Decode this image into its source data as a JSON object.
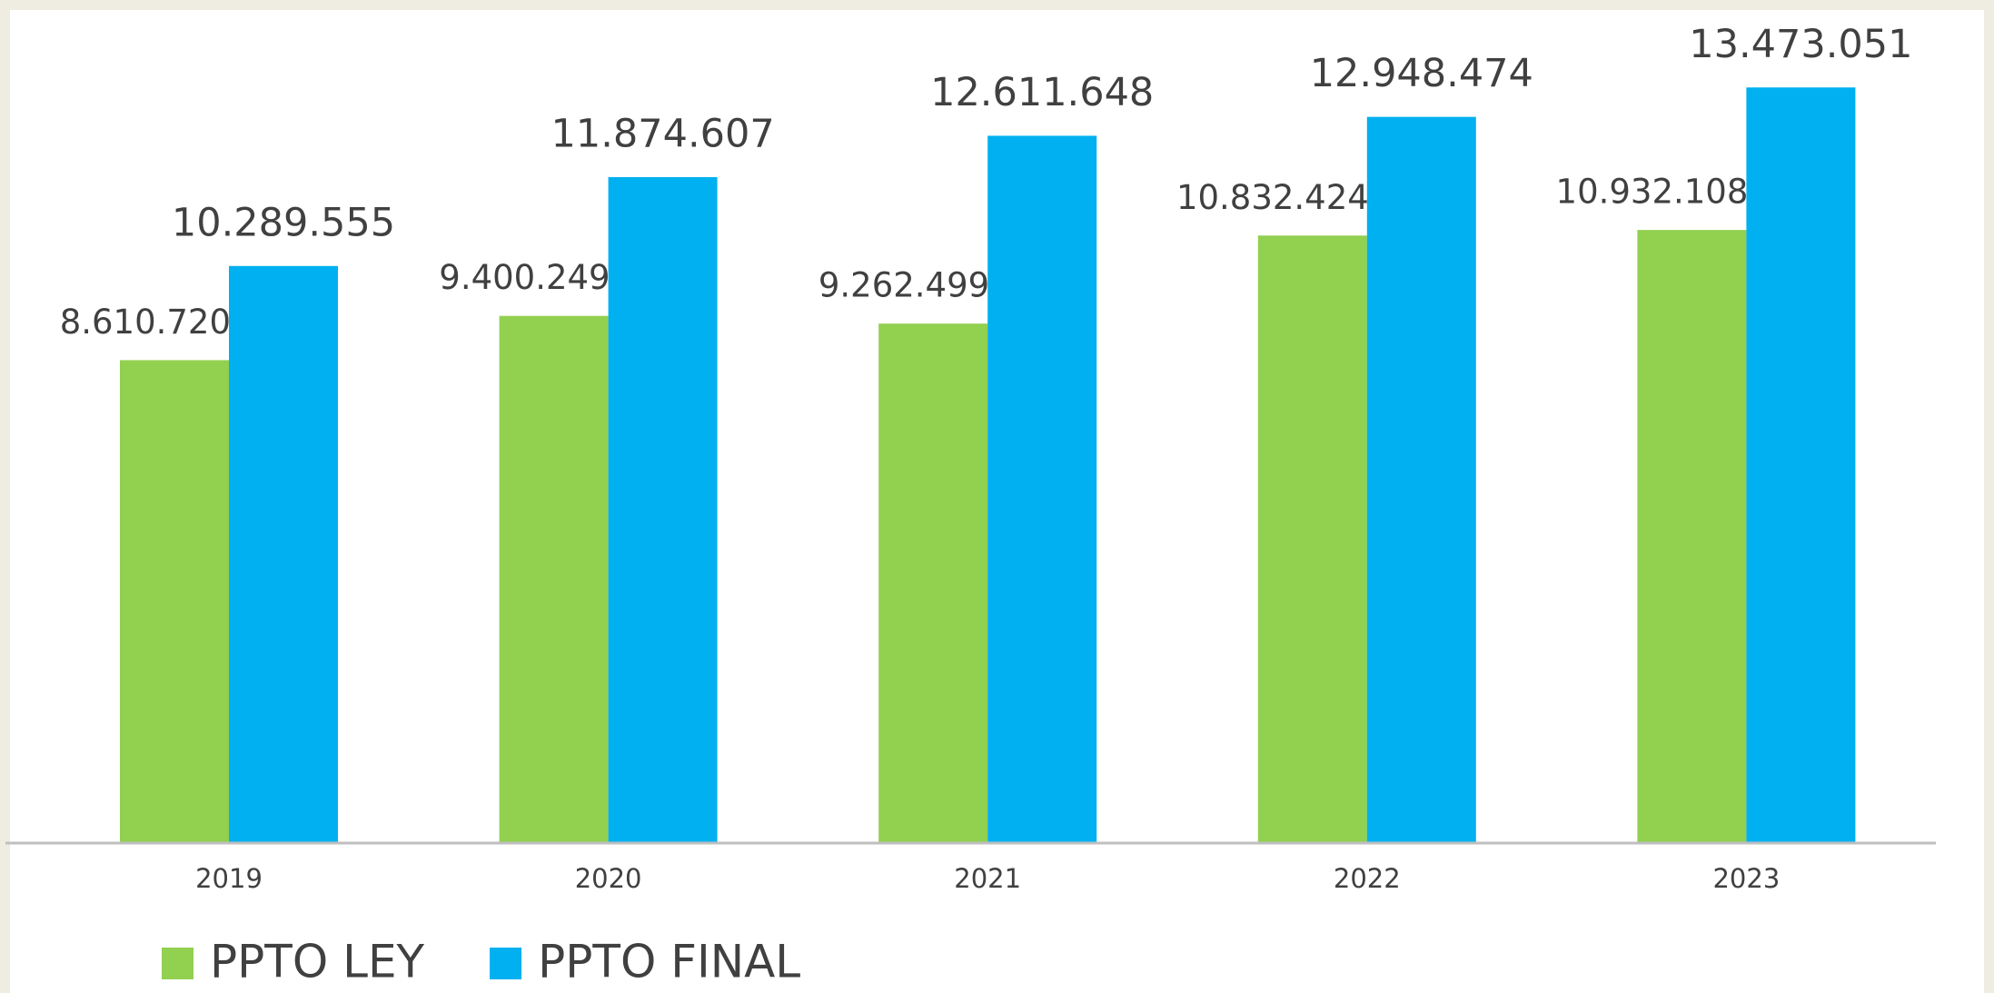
{
  "chart_data": {
    "type": "bar",
    "categories": [
      "2019",
      "2020",
      "2021",
      "2022",
      "2023"
    ],
    "series": [
      {
        "name": "PPTO LEY",
        "color": "#92d050",
        "values": [
          8610720,
          9400249,
          9262499,
          10832424,
          10932108
        ],
        "value_labels": [
          "8.610.720",
          "9.400.249",
          "9.262.499",
          "10.832.424",
          "10.932.108"
        ]
      },
      {
        "name": "PPTO FINAL",
        "color": "#00b0f0",
        "values": [
          10289555,
          11874607,
          12611648,
          12948474,
          13473051
        ],
        "value_labels": [
          "10.289.555",
          "11.874.607",
          "12.611.648",
          "12.948.474",
          "13.473.051"
        ]
      }
    ],
    "ylim": [
      0,
      15000000
    ],
    "legend": "bottom-left"
  }
}
